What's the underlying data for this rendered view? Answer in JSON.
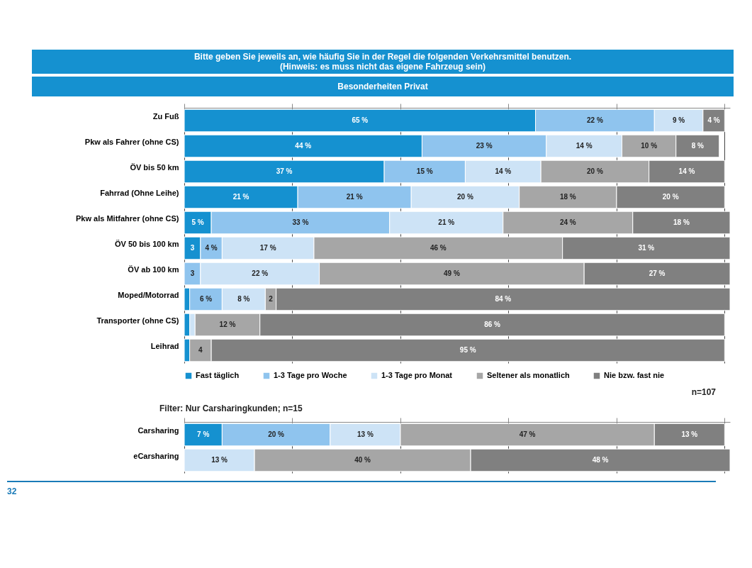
{
  "chart_data": [
    {
      "type": "bar",
      "orientation": "horizontal",
      "stacked": true,
      "title": "Bitte geben Sie jeweils an, wie häufig Sie in der Regel die folgenden Verkehrsmittel benutzen.\n(Hinweis: es muss nicht das eigene Fahrzeug sein)",
      "subtitle": "Besonderheiten Privat",
      "categories": [
        "Zu Fuß",
        "Pkw als Fahrer (ohne CS)",
        "ÖV bis 50 km",
        "Fahrrad (Ohne Leihe)",
        "Pkw als Mitfahrer (ohne CS)",
        "ÖV 50 bis 100 km",
        "ÖV ab 100 km",
        "Moped/Motorrad",
        "Transporter (ohne CS)",
        "Leihrad"
      ],
      "series": [
        {
          "name": "Fast täglich",
          "color": "#1591d0",
          "values": [
            65,
            44,
            37,
            21,
            5,
            3,
            null,
            1,
            1,
            1
          ],
          "value_labels": [
            "65 %",
            "44 %",
            "37 %",
            "21 %",
            "5 %",
            "3",
            null,
            null,
            null,
            null
          ]
        },
        {
          "name": "1-3 Tage pro Woche",
          "color": "#8fc4ee",
          "values": [
            22,
            23,
            15,
            21,
            33,
            4,
            3,
            6,
            null,
            null
          ],
          "value_labels": [
            "22 %",
            "23 %",
            "15 %",
            "21 %",
            "33 %",
            "4 %",
            "3",
            "6 %",
            null,
            null
          ]
        },
        {
          "name": "1-3 Tage pro Monat",
          "color": "#cde3f6",
          "values": [
            9,
            14,
            14,
            20,
            21,
            17,
            22,
            8,
            1,
            null
          ],
          "value_labels": [
            "9 %",
            "14 %",
            "14 %",
            "20 %",
            "21 %",
            "17 %",
            "22 %",
            "8 %",
            null,
            null
          ]
        },
        {
          "name": "Seltener als monatlich",
          "color": "#a6a6a6",
          "values": [
            null,
            10,
            20,
            18,
            24,
            46,
            49,
            2,
            12,
            4
          ],
          "value_labels": [
            null,
            "10 %",
            "20 %",
            "18 %",
            "24 %",
            "46 %",
            "49 %",
            "2",
            "12 %",
            "4"
          ]
        },
        {
          "name": "Nie bzw. fast nie",
          "color": "#808080",
          "values": [
            4,
            8,
            14,
            20,
            18,
            31,
            27,
            84,
            86,
            95
          ],
          "value_labels": [
            "4 %",
            "8 %",
            "14 %",
            "20 %",
            "18 %",
            "31 %",
            "27 %",
            "84 %",
            "86 %",
            "95 %"
          ]
        }
      ],
      "xlim": [
        0,
        101
      ],
      "xticks": [
        {
          "value": 0,
          "label": null
        },
        {
          "value": 20,
          "label": null
        },
        {
          "value": 40,
          "label": null
        },
        {
          "value": 60,
          "label": null
        },
        {
          "value": 80,
          "label": null
        },
        {
          "value": 100,
          "label": null
        }
      ],
      "tick_labels": false,
      "grid": "x",
      "legend": "bottom",
      "annotations": [
        "n=107"
      ]
    },
    {
      "type": "bar",
      "orientation": "horizontal",
      "stacked": true,
      "categories": [
        "Carsharing",
        "eCarsharing"
      ],
      "series": [
        {
          "color": "#1591d0",
          "values": [
            7,
            null
          ],
          "value_labels": [
            "7 %",
            null
          ]
        },
        {
          "color": "#8fc4ee",
          "values": [
            20,
            null
          ],
          "value_labels": [
            "20 %",
            null
          ]
        },
        {
          "color": "#cde3f6",
          "values": [
            13,
            13
          ],
          "value_labels": [
            "13 %",
            "13 %"
          ]
        },
        {
          "color": "#a6a6a6",
          "values": [
            47,
            40
          ],
          "value_labels": [
            "47 %",
            "40 %"
          ]
        },
        {
          "color": "#808080",
          "values": [
            13,
            48
          ],
          "value_labels": [
            "13 %",
            "48 %"
          ]
        }
      ],
      "xlim": [
        0,
        101
      ],
      "xticks": [
        {
          "value": 0,
          "label": null
        },
        {
          "value": 20,
          "label": null
        },
        {
          "value": 40,
          "label": null
        },
        {
          "value": 60,
          "label": null
        },
        {
          "value": 80,
          "label": null
        },
        {
          "value": 100,
          "label": null
        }
      ],
      "tick_labels": false,
      "grid": "x",
      "annotations": [
        "Filter: Nur Carsharingkunden; n=15",
        "32"
      ]
    }
  ]
}
